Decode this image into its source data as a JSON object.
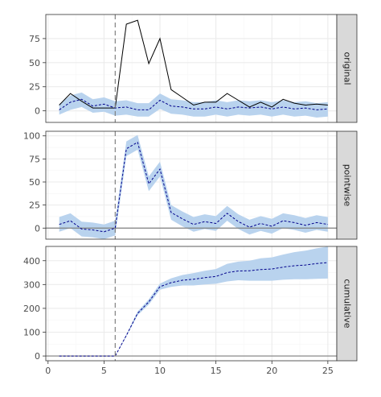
{
  "chart_data": {
    "type": "line",
    "x_ticks": [
      0,
      5,
      10,
      15,
      20,
      25
    ],
    "xlim": [
      -0.2,
      25.8
    ],
    "intervention_x": 6,
    "grid": true,
    "colors": {
      "band": "#b9d3ee",
      "predicted": "#00008b",
      "observed": "#000000",
      "zero_line": "#7f7f7f",
      "intervention": "#808080",
      "strip_bg": "#d9d9d9",
      "grid_major": "#ebebeb",
      "grid_minor": "#f5f5f5",
      "panel_border": "#333333"
    },
    "panels": [
      {
        "strip_label": "original",
        "ylim": [
          -12,
          100
        ],
        "y_ticks": [
          0,
          25,
          50,
          75
        ],
        "x": [
          1,
          2,
          3,
          4,
          5,
          6,
          7,
          8,
          9,
          10,
          11,
          12,
          13,
          14,
          15,
          16,
          17,
          18,
          19,
          20,
          21,
          22,
          23,
          24,
          25
        ],
        "series": [
          {
            "name": "",
            "role": "observed",
            "style": "solid",
            "values": [
              6,
              18,
              10,
              3,
              3,
              3,
              90,
              94,
              49,
              75,
              22,
              14,
              6,
              9,
              9,
              18,
              11,
              4,
              9,
              4,
              12,
              8,
              6,
              7,
              6
            ]
          },
          {
            "name": "",
            "role": "predicted",
            "style": "dashed",
            "values": [
              1,
              9,
              12,
              5,
              7,
              3,
              4,
              1,
              1,
              11,
              5,
              4,
              2,
              2,
              4,
              2,
              4,
              3,
              4,
              2,
              4,
              2,
              3,
              1,
              2
            ]
          }
        ],
        "band": {
          "lower": [
            -4,
            1,
            4,
            -2,
            -1,
            -5,
            -4,
            -6,
            -6,
            2,
            -3,
            -4,
            -6,
            -6,
            -4,
            -6,
            -4,
            -5,
            -4,
            -6,
            -4,
            -6,
            -5,
            -7,
            -6
          ],
          "upper": [
            7,
            16,
            19,
            12,
            14,
            10,
            11,
            8,
            8,
            18,
            12,
            11,
            9,
            9,
            11,
            9,
            11,
            10,
            11,
            9,
            11,
            9,
            10,
            8,
            9
          ]
        }
      },
      {
        "strip_label": "pointwise",
        "ylim": [
          -12,
          105
        ],
        "y_ticks": [
          0,
          25,
          50,
          75,
          100
        ],
        "x": [
          1,
          2,
          3,
          4,
          5,
          6,
          7,
          8,
          9,
          10,
          11,
          12,
          13,
          14,
          15,
          16,
          17,
          18,
          19,
          20,
          21,
          22,
          23,
          24,
          25
        ],
        "series": [
          {
            "name": "",
            "role": "effect",
            "style": "dashed",
            "values": [
              4,
              8,
              -1,
              -2,
              -4,
              0,
              86,
              93,
              48,
              64,
              17,
              10,
              4,
              7,
              5,
              16,
              7,
              1,
              5,
              2,
              8,
              6,
              3,
              6,
              4
            ]
          }
        ],
        "band": {
          "lower": [
            -4,
            0,
            -9,
            -10,
            -12,
            -8,
            78,
            85,
            40,
            56,
            9,
            2,
            -4,
            -1,
            -3,
            8,
            -1,
            -7,
            -3,
            -6,
            0,
            -2,
            -5,
            -2,
            -4
          ],
          "upper": [
            12,
            16,
            7,
            6,
            4,
            8,
            94,
            101,
            56,
            72,
            25,
            18,
            12,
            15,
            13,
            24,
            15,
            9,
            13,
            10,
            16,
            14,
            11,
            14,
            12
          ]
        }
      },
      {
        "strip_label": "cumulative",
        "ylim": [
          -20,
          460
        ],
        "y_ticks": [
          0,
          100,
          200,
          300,
          400
        ],
        "x": [
          1,
          2,
          3,
          4,
          5,
          6,
          7,
          8,
          9,
          10,
          11,
          12,
          13,
          14,
          15,
          16,
          17,
          18,
          19,
          20,
          21,
          22,
          23,
          24,
          25
        ],
        "series": [
          {
            "name": "",
            "role": "effect",
            "style": "dashed",
            "values": [
              0,
              0,
              0,
              0,
              0,
              0,
              86,
              179,
              227,
              291,
              308,
              318,
              322,
              329,
              334,
              350,
              357,
              358,
              363,
              365,
              373,
              379,
              382,
              388,
              392
            ]
          }
        ],
        "band": {
          "lower": [
            0,
            0,
            0,
            0,
            0,
            0,
            82,
            171,
            216,
            278,
            290,
            296,
            296,
            300,
            303,
            313,
            318,
            316,
            316,
            316,
            320,
            322,
            322,
            324,
            325
          ],
          "upper": [
            0,
            0,
            0,
            0,
            0,
            0,
            90,
            187,
            238,
            304,
            326,
            340,
            348,
            358,
            365,
            387,
            396,
            400,
            410,
            414,
            426,
            436,
            442,
            452,
            459
          ]
        }
      }
    ]
  }
}
